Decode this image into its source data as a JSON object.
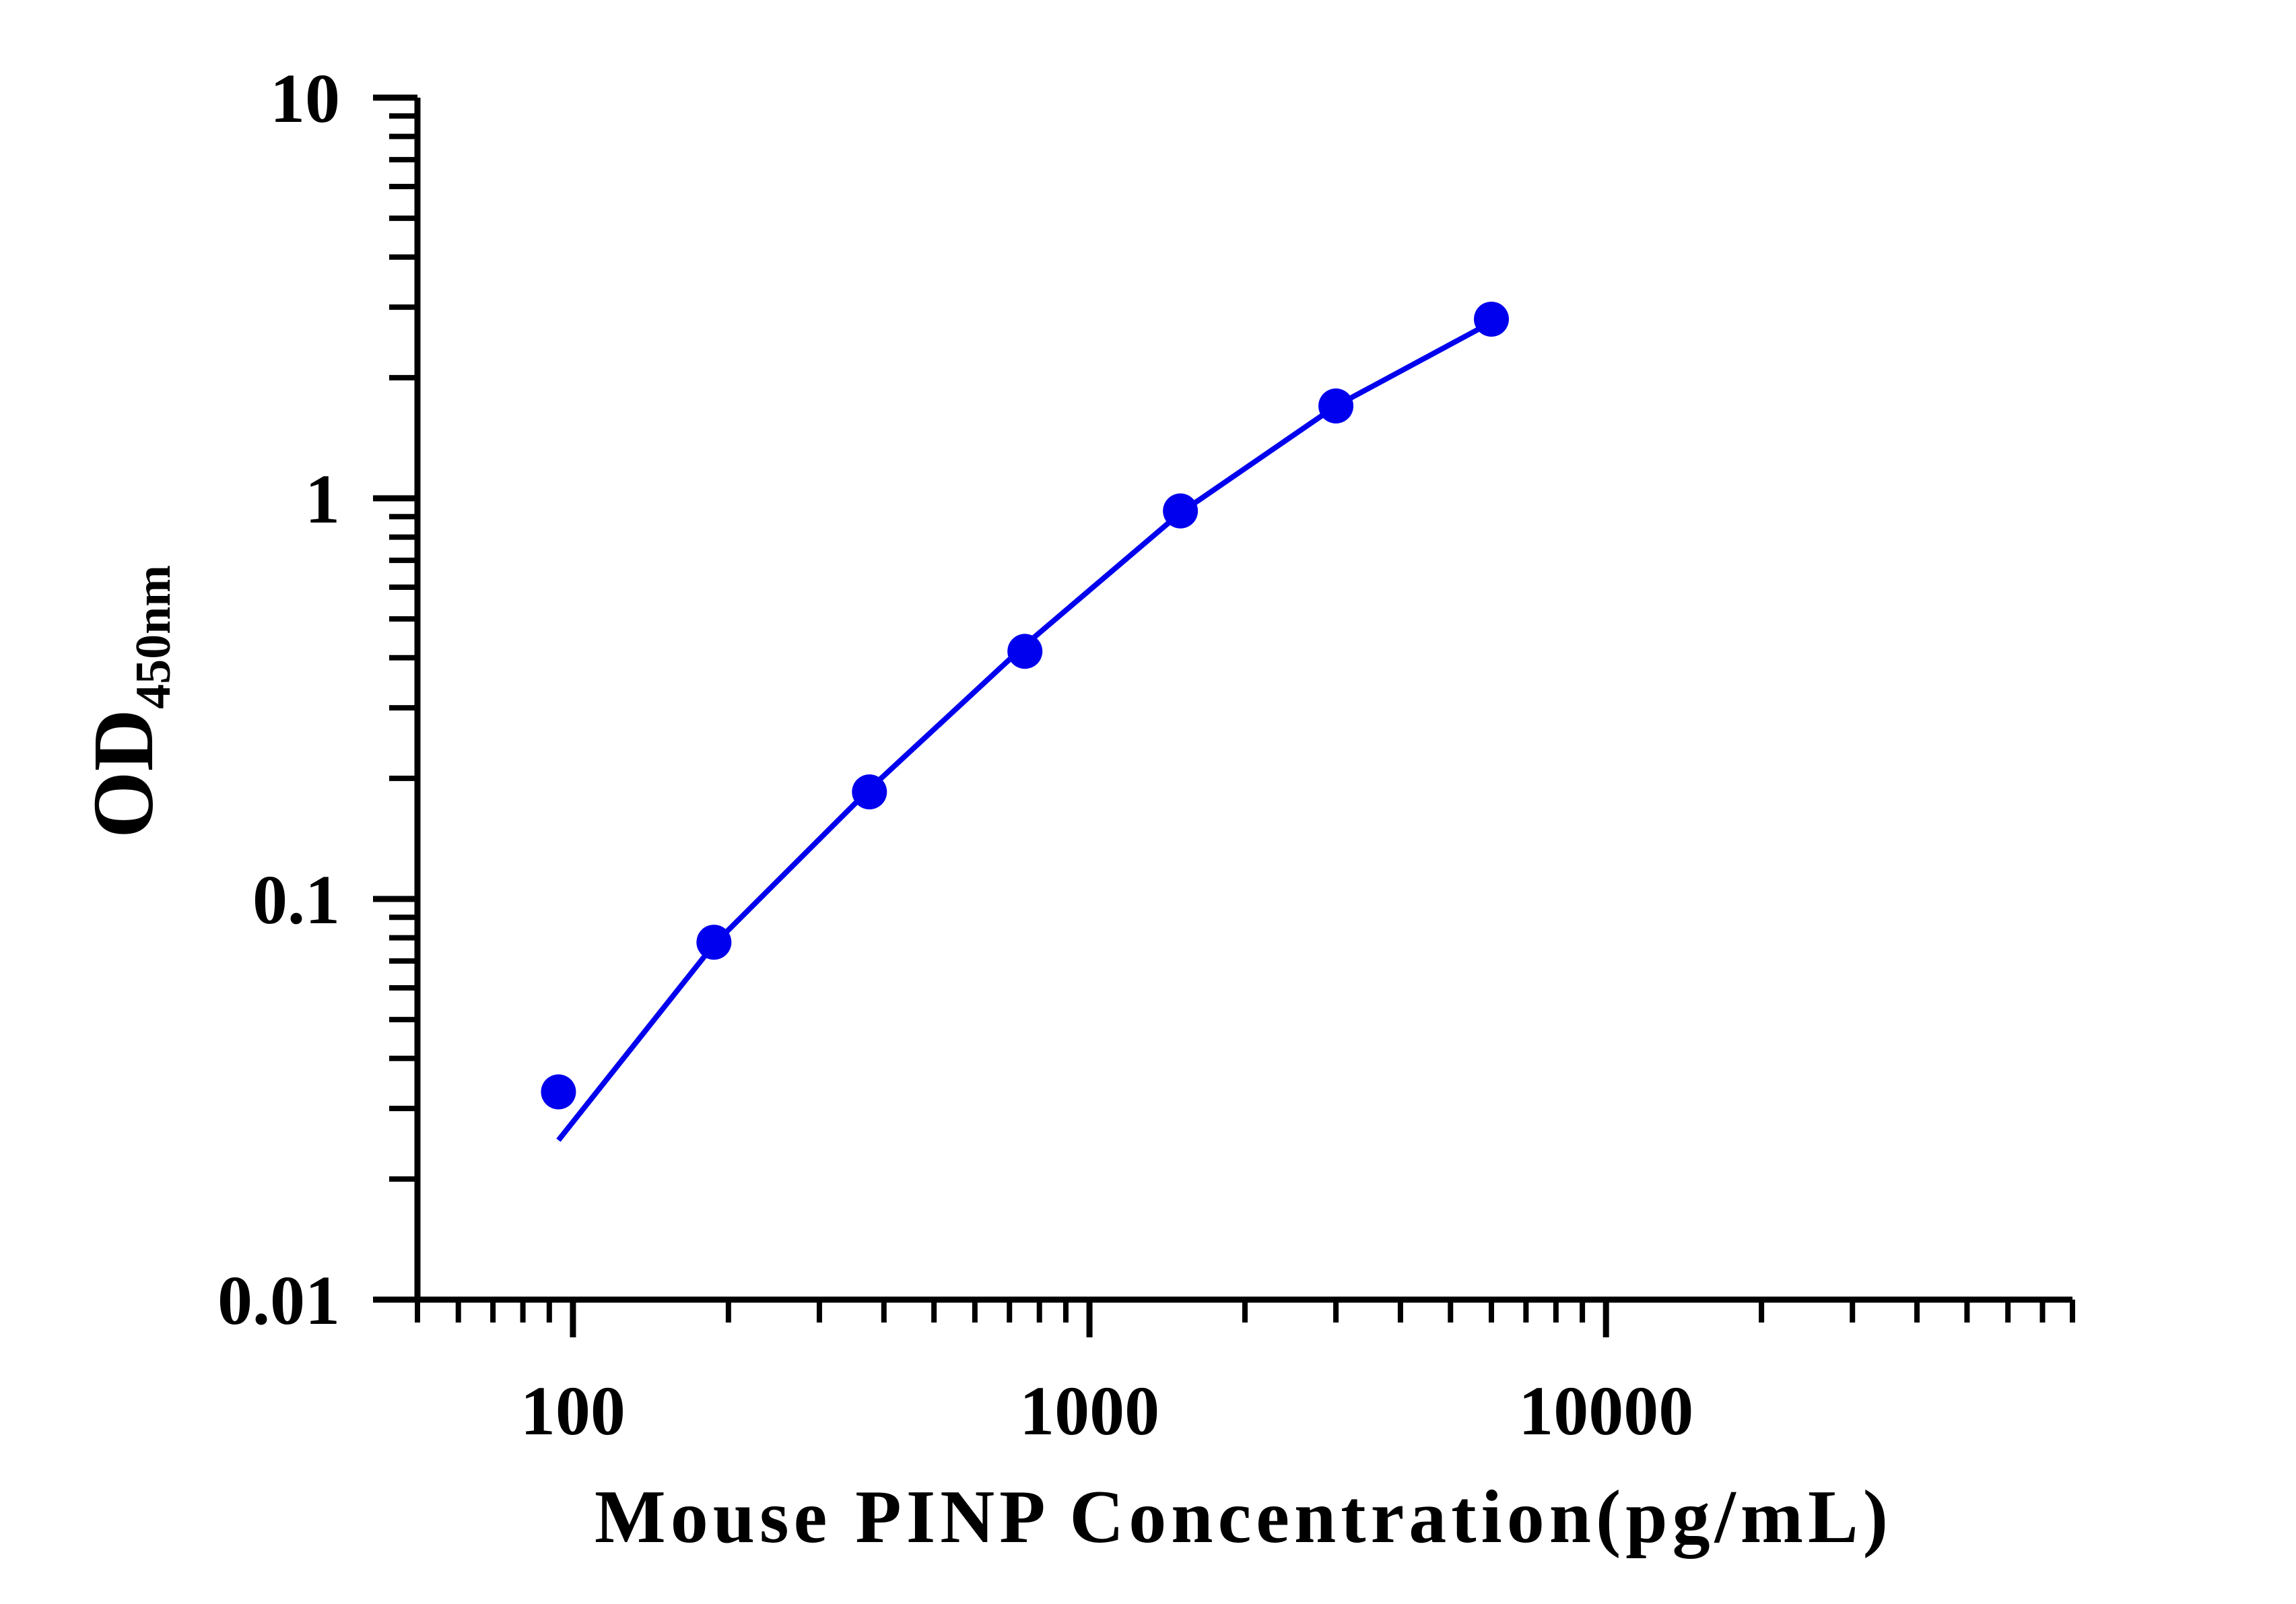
{
  "chart_data": {
    "type": "scatter",
    "title": "",
    "xlabel": "Mouse PINP Concentration(pg/mL)",
    "ylabel": {
      "main": "OD",
      "subscript": "450nm"
    },
    "x_scale": "log",
    "y_scale": "log",
    "xlim": [
      50,
      80000
    ],
    "ylim": [
      0.01,
      10
    ],
    "x_ticks": [
      {
        "value": 100,
        "label": "100"
      },
      {
        "value": 1000,
        "label": "1000"
      },
      {
        "value": 10000,
        "label": "10000"
      }
    ],
    "y_ticks": [
      {
        "value": 0.01,
        "label": "0.01"
      },
      {
        "value": 0.1,
        "label": "0.1"
      },
      {
        "value": 1,
        "label": "1"
      },
      {
        "value": 10,
        "label": "10"
      }
    ],
    "grid": false,
    "legend": "none",
    "colors": {
      "series": "#0000ee",
      "axis": "#000000"
    },
    "series": [
      {
        "points": [
          {
            "x": 93.75,
            "y": 0.033
          },
          {
            "x": 187.5,
            "y": 0.078
          },
          {
            "x": 375,
            "y": 0.185
          },
          {
            "x": 750,
            "y": 0.415
          },
          {
            "x": 1500,
            "y": 0.93
          },
          {
            "x": 3000,
            "y": 1.7
          },
          {
            "x": 6000,
            "y": 2.8
          }
        ],
        "fit_line": [
          {
            "x": 93.75,
            "y": 0.025
          },
          {
            "x": 187.5,
            "y": 0.077
          },
          {
            "x": 375,
            "y": 0.188
          },
          {
            "x": 750,
            "y": 0.43
          },
          {
            "x": 1500,
            "y": 0.92
          },
          {
            "x": 3000,
            "y": 1.7
          },
          {
            "x": 6000,
            "y": 2.75
          }
        ]
      }
    ]
  }
}
